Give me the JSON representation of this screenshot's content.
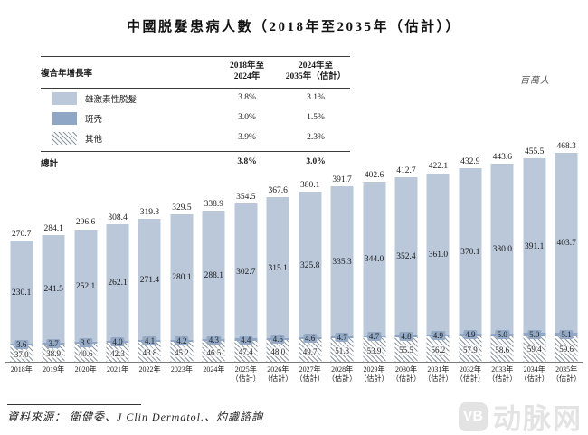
{
  "title": "中國脱髮患病人數（2018年至2035年（估計））",
  "unit_label": "百萬人",
  "colors": {
    "androgenetic": "#bac8da",
    "areata": "#8fa6c4",
    "hatch_line": "#8d97a3",
    "watermark": "#e3e3e3"
  },
  "cagr_table": {
    "header": {
      "label": "複合年增長率",
      "col1": [
        "2018年至",
        "2024年"
      ],
      "col2": [
        "2024年至",
        "2035年（估計）"
      ]
    },
    "rows": [
      {
        "label": "雄激素性脱髮",
        "col1": "3.8%",
        "col2": "3.1%"
      },
      {
        "label": "斑禿",
        "col1": "3.0%",
        "col2": "1.5%"
      },
      {
        "label": "其他",
        "col1": "3.9%",
        "col2": "2.3%"
      }
    ],
    "total": {
      "label": "總計",
      "col1": "3.8%",
      "col2": "3.0%"
    }
  },
  "chart_data": {
    "type": "bar",
    "stacked": true,
    "title": "中國脱髮患病人數（2018年至2035年（估計））",
    "ylabel": "百萬人",
    "ylim": [
      0,
      500
    ],
    "grid": false,
    "legend_position": "top-left-table",
    "stack_order_bottom_to_top": [
      "其他",
      "斑禿",
      "雄激素性脱髮"
    ],
    "categories": [
      "2018年",
      "2019年",
      "2020年",
      "2021年",
      "2022年",
      "2023年",
      "2024年",
      "2025年",
      "2026年",
      "2027年",
      "2028年",
      "2029年",
      "2030年",
      "2031年",
      "2032年",
      "2033年",
      "2034年",
      "2035年"
    ],
    "estimated_start_index": 7,
    "estimated_note": "（估計）",
    "series": [
      {
        "name": "雄激素性脱髮",
        "values": [
          230.1,
          241.5,
          252.1,
          262.1,
          271.4,
          280.1,
          288.1,
          302.7,
          315.1,
          325.8,
          335.3,
          344.0,
          352.4,
          361.0,
          370.1,
          380.0,
          391.1,
          403.7
        ]
      },
      {
        "name": "斑禿",
        "values": [
          3.6,
          3.7,
          3.9,
          4.0,
          4.1,
          4.2,
          4.3,
          4.4,
          4.5,
          4.6,
          4.7,
          4.7,
          4.8,
          4.9,
          4.9,
          5.0,
          5.0,
          5.1
        ]
      },
      {
        "name": "其他",
        "values": [
          37.0,
          38.9,
          40.6,
          42.3,
          43.8,
          45.2,
          46.5,
          47.4,
          48.0,
          49.7,
          51.8,
          53.9,
          55.5,
          56.2,
          57.9,
          58.6,
          59.4,
          59.6
        ]
      }
    ],
    "totals": [
      270.7,
      284.1,
      296.6,
      308.4,
      319.3,
      329.5,
      338.9,
      354.5,
      367.6,
      380.1,
      391.7,
      402.6,
      412.7,
      422.1,
      432.9,
      443.6,
      455.5,
      468.3
    ]
  },
  "source": "資料來源：  衛健委、J Clin Dermatol.、灼識諮詢",
  "watermark": {
    "logo": "VB",
    "text": "动脉网"
  }
}
